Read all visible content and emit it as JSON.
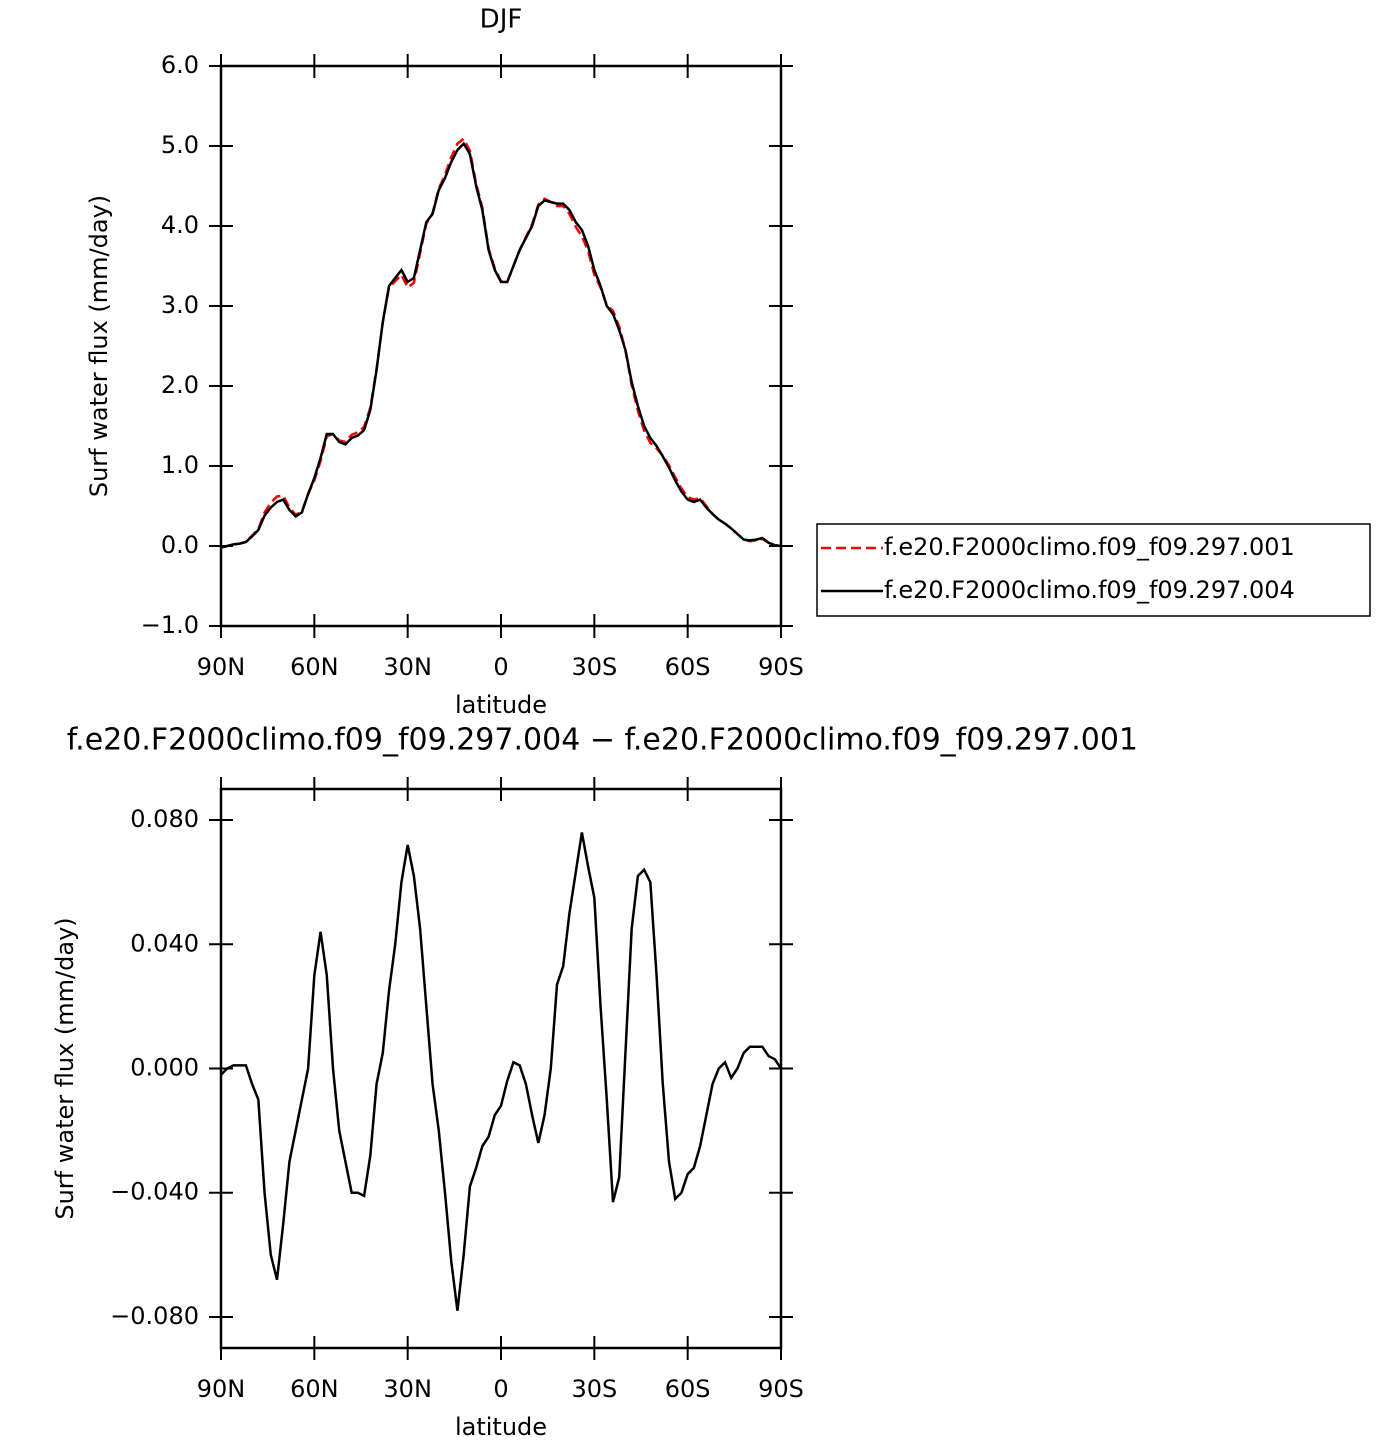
{
  "chart_data": [
    {
      "type": "line",
      "title": "DJF",
      "x_label": "latitude",
      "y_label": "Surf water flux (mm/day)",
      "x": [
        90,
        88,
        86,
        84,
        82,
        80,
        78,
        76,
        74,
        72,
        70,
        68,
        66,
        64,
        62,
        60,
        58,
        56,
        54,
        52,
        50,
        48,
        46,
        44,
        42,
        40,
        38,
        36,
        34,
        32,
        30,
        28,
        26,
        24,
        22,
        20,
        18,
        16,
        14,
        12,
        10,
        8,
        6,
        4,
        2,
        0,
        -2,
        -4,
        -6,
        -8,
        -10,
        -12,
        -14,
        -16,
        -18,
        -20,
        -22,
        -24,
        -26,
        -28,
        -30,
        -32,
        -34,
        -36,
        -38,
        -40,
        -42,
        -44,
        -46,
        -48,
        -50,
        -52,
        -54,
        -56,
        -58,
        -60,
        -62,
        -64,
        -66,
        -68,
        -70,
        -72,
        -74,
        -76,
        -78,
        -80,
        -82,
        -84,
        -86,
        -88,
        -90
      ],
      "series": [
        {
          "name": "f.e20.F2000climo.f09_f09.297.001",
          "color": "#ff0000",
          "dashed": true,
          "values": [
            -0.02,
            0.0,
            0.02,
            0.03,
            0.05,
            0.13,
            0.21,
            0.42,
            0.54,
            0.62,
            0.63,
            0.48,
            0.39,
            0.43,
            0.65,
            0.82,
            1.06,
            1.37,
            1.4,
            1.32,
            1.3,
            1.39,
            1.42,
            1.49,
            1.73,
            2.21,
            2.8,
            3.23,
            3.31,
            3.39,
            3.23,
            3.29,
            3.66,
            4.03,
            4.16,
            4.47,
            4.64,
            4.86,
            5.03,
            5.09,
            4.94,
            4.53,
            4.23,
            3.72,
            3.47,
            3.31,
            3.3,
            3.5,
            3.7,
            3.86,
            4.02,
            4.27,
            4.34,
            4.3,
            4.25,
            4.25,
            4.15,
            3.99,
            3.87,
            3.69,
            3.39,
            3.23,
            3.01,
            2.94,
            2.74,
            2.45,
            2.01,
            1.69,
            1.44,
            1.29,
            1.22,
            1.13,
            1.01,
            0.86,
            0.72,
            0.61,
            0.58,
            0.6,
            0.5,
            0.4,
            0.33,
            0.28,
            0.22,
            0.15,
            0.08,
            0.06,
            0.07,
            0.09,
            0.04,
            0.01,
            0.0
          ]
        },
        {
          "name": "f.e20.F2000climo.f09_f09.297.004",
          "color": "#000000",
          "dashed": false,
          "values": [
            -0.02,
            0.0,
            0.02,
            0.03,
            0.05,
            0.12,
            0.2,
            0.38,
            0.48,
            0.55,
            0.58,
            0.45,
            0.37,
            0.42,
            0.65,
            0.85,
            1.1,
            1.4,
            1.4,
            1.3,
            1.27,
            1.35,
            1.38,
            1.45,
            1.7,
            2.2,
            2.8,
            3.25,
            3.35,
            3.45,
            3.3,
            3.35,
            3.7,
            4.05,
            4.15,
            4.45,
            4.6,
            4.8,
            4.95,
            5.03,
            4.9,
            4.5,
            4.2,
            3.7,
            3.45,
            3.3,
            3.3,
            3.5,
            3.7,
            3.85,
            4.0,
            4.25,
            4.32,
            4.3,
            4.28,
            4.28,
            4.2,
            4.05,
            3.95,
            3.75,
            3.45,
            3.25,
            3.0,
            2.9,
            2.7,
            2.45,
            2.05,
            1.75,
            1.5,
            1.35,
            1.25,
            1.12,
            0.98,
            0.82,
            0.68,
            0.58,
            0.55,
            0.58,
            0.48,
            0.4,
            0.33,
            0.28,
            0.22,
            0.15,
            0.08,
            0.07,
            0.08,
            0.1,
            0.04,
            0.01,
            0.0
          ]
        }
      ],
      "xlim": [
        90,
        -90
      ],
      "xticks": [
        {
          "value": 90,
          "label": "90N"
        },
        {
          "value": 60,
          "label": "60N"
        },
        {
          "value": 30,
          "label": "30N"
        },
        0,
        {
          "value": -30,
          "label": "30S"
        },
        {
          "value": -60,
          "label": "60S"
        },
        {
          "value": -90,
          "label": "90S"
        }
      ],
      "ylim": [
        -1,
        6
      ],
      "yticks": [
        {
          "value": -1,
          "label": "−1.0"
        },
        {
          "value": 0,
          "label": "0.0"
        },
        {
          "value": 1,
          "label": "1.0"
        },
        {
          "value": 2,
          "label": "2.0"
        },
        {
          "value": 3,
          "label": "3.0"
        },
        {
          "value": 4,
          "label": "4.0"
        },
        {
          "value": 5,
          "label": "5.0"
        },
        {
          "value": 6,
          "label": "6.0"
        }
      ],
      "grid": false,
      "legend": "right"
    },
    {
      "type": "line",
      "title": "f.e20.F2000climo.f09_f09.297.004 − f.e20.F2000climo.f09_f09.297.001",
      "x_label": "latitude",
      "y_label": "Surf water flux (mm/day)",
      "x": [
        90,
        88,
        86,
        84,
        82,
        80,
        78,
        76,
        74,
        72,
        70,
        68,
        66,
        64,
        62,
        60,
        58,
        56,
        54,
        52,
        50,
        48,
        46,
        44,
        42,
        40,
        38,
        36,
        34,
        32,
        30,
        28,
        26,
        24,
        22,
        20,
        18,
        16,
        14,
        12,
        10,
        8,
        6,
        4,
        2,
        0,
        -2,
        -4,
        -6,
        -8,
        -10,
        -12,
        -14,
        -16,
        -18,
        -20,
        -22,
        -24,
        -26,
        -28,
        -30,
        -32,
        -34,
        -36,
        -38,
        -40,
        -42,
        -44,
        -46,
        -48,
        -50,
        -52,
        -54,
        -56,
        -58,
        -60,
        -62,
        -64,
        -66,
        -68,
        -70,
        -72,
        -74,
        -76,
        -78,
        -80,
        -82,
        -84,
        -86,
        -88,
        -90
      ],
      "series": [
        {
          "color": "#000000",
          "dashed": false,
          "values": [
            -0.002,
            0.0,
            0.001,
            0.001,
            0.001,
            -0.005,
            -0.01,
            -0.04,
            -0.06,
            -0.068,
            -0.05,
            -0.03,
            -0.02,
            -0.01,
            0.0,
            0.03,
            0.044,
            0.03,
            0.0,
            -0.02,
            -0.03,
            -0.04,
            -0.04,
            -0.041,
            -0.028,
            -0.005,
            0.005,
            0.025,
            0.04,
            0.06,
            0.072,
            0.062,
            0.045,
            0.02,
            -0.005,
            -0.02,
            -0.04,
            -0.062,
            -0.078,
            -0.06,
            -0.038,
            -0.032,
            -0.025,
            -0.022,
            -0.015,
            -0.012,
            -0.004,
            0.002,
            0.001,
            -0.005,
            -0.015,
            -0.024,
            -0.015,
            0.0,
            0.027,
            0.033,
            0.05,
            0.063,
            0.076,
            0.065,
            0.055,
            0.02,
            -0.01,
            -0.043,
            -0.035,
            0.005,
            0.045,
            0.062,
            0.064,
            0.06,
            0.03,
            -0.005,
            -0.03,
            -0.042,
            -0.04,
            -0.034,
            -0.032,
            -0.025,
            -0.015,
            -0.005,
            0.0,
            0.002,
            -0.003,
            0.0,
            0.005,
            0.007,
            0.007,
            0.007,
            0.004,
            0.003,
            0.0
          ]
        }
      ],
      "xlim": [
        90,
        -90
      ],
      "xticks": [
        {
          "value": 90,
          "label": "90N"
        },
        {
          "value": 60,
          "label": "60N"
        },
        {
          "value": 30,
          "label": "30N"
        },
        0,
        {
          "value": -30,
          "label": "30S"
        },
        {
          "value": -60,
          "label": "60S"
        },
        {
          "value": -90,
          "label": "90S"
        }
      ],
      "ylim": [
        -0.09,
        0.09
      ],
      "yticks": [
        {
          "value": -0.08,
          "label": "−0.080"
        },
        {
          "value": -0.04,
          "label": "−0.040"
        },
        {
          "value": 0,
          "label": "0.000"
        },
        {
          "value": 0.04,
          "label": "0.040"
        },
        {
          "value": 0.08,
          "label": "0.080"
        }
      ],
      "grid": false
    }
  ]
}
